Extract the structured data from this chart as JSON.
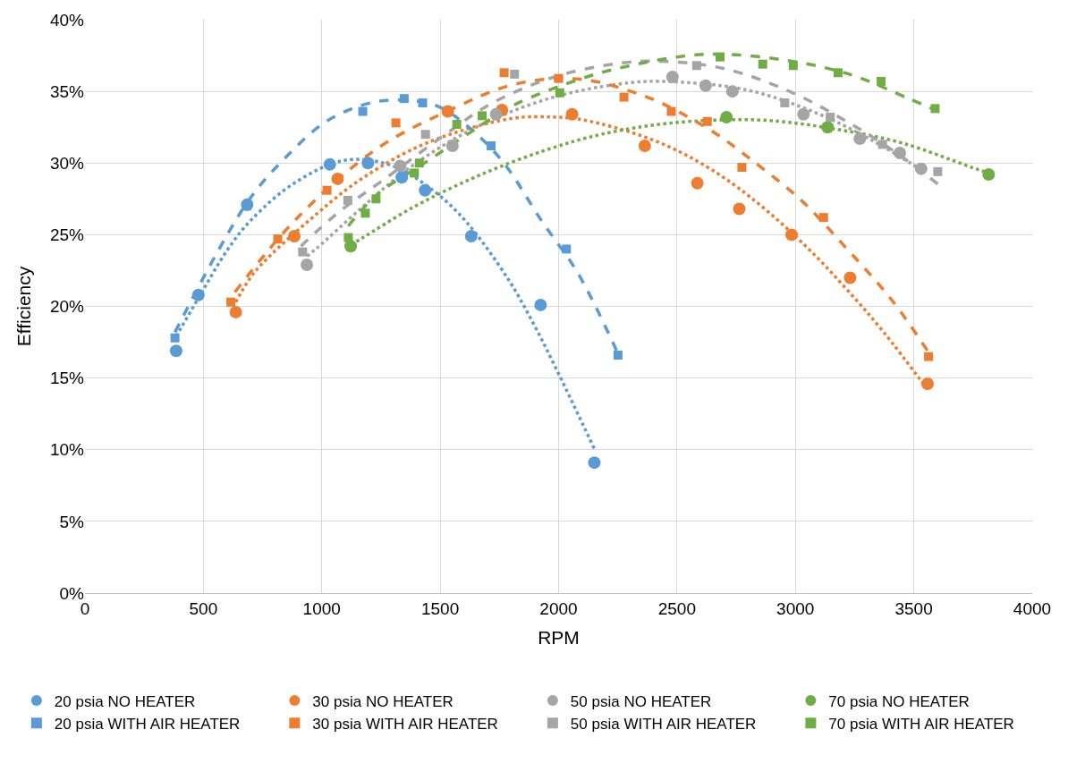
{
  "chart_data": {
    "type": "scatter",
    "xlabel": "RPM",
    "ylabel": "Efficiency",
    "xlim": [
      0,
      4000
    ],
    "xticks": [
      0,
      500,
      1000,
      1500,
      2000,
      2500,
      3000,
      3500,
      4000
    ],
    "ylim": [
      0,
      40
    ],
    "yticks": [
      {
        "value": 0,
        "label": "0%"
      },
      {
        "value": 5,
        "label": "5%"
      },
      {
        "value": 10,
        "label": "10%"
      },
      {
        "value": 15,
        "label": "15%"
      },
      {
        "value": 20,
        "label": "20%"
      },
      {
        "value": 25,
        "label": "25%"
      },
      {
        "value": 30,
        "label": "30%"
      },
      {
        "value": 35,
        "label": "35%"
      },
      {
        "value": 40,
        "label": "40%"
      }
    ],
    "grid": true,
    "legend": "bottom",
    "series": [
      {
        "name": "20 psia NO HEATER",
        "marker": "circle",
        "color": "#5b9bd5",
        "x": [
          385,
          479,
          685,
          1034,
          1195,
          1338,
          1436,
          1631,
          1924,
          2151
        ],
        "values": [
          16.9,
          20.8,
          27.1,
          29.9,
          30.0,
          29.0,
          28.1,
          24.9,
          20.1,
          9.1
        ]
      },
      {
        "name": "30 psia NO HEATER",
        "marker": "circle",
        "color": "#ed7d31",
        "x": [
          637,
          884,
          1067,
          1532,
          1761,
          2057,
          2364,
          2586,
          2763,
          2984,
          3231,
          3558
        ],
        "values": [
          19.6,
          24.9,
          28.9,
          33.6,
          33.7,
          33.4,
          31.2,
          28.6,
          26.8,
          25.0,
          22.0,
          14.6
        ]
      },
      {
        "name": "50 psia NO HEATER",
        "marker": "circle",
        "color": "#a5a5a5",
        "x": [
          937,
          1331,
          1552,
          1736,
          2481,
          2621,
          2734,
          3034,
          3272,
          3441,
          3531
        ],
        "values": [
          22.9,
          29.8,
          31.2,
          33.4,
          36.0,
          35.4,
          35.0,
          33.4,
          31.7,
          30.7,
          29.6
        ]
      },
      {
        "name": "70 psia NO HEATER",
        "marker": "circle",
        "color": "#70ad47",
        "x": [
          1122,
          2709,
          3136,
          3816
        ],
        "values": [
          24.2,
          33.2,
          32.5,
          29.2
        ]
      },
      {
        "name": "20 psia WITH AIR HEATER",
        "marker": "square",
        "color": "#5b9bd5",
        "x": [
          380,
          682,
          1173,
          1348,
          1426,
          1715,
          2033,
          2251
        ],
        "values": [
          17.8,
          27.0,
          33.6,
          34.5,
          34.2,
          31.2,
          24.0,
          16.6
        ]
      },
      {
        "name": "30 psia WITH AIR HEATER",
        "marker": "square",
        "color": "#ed7d31",
        "x": [
          616,
          814,
          1022,
          1313,
          1770,
          2000,
          2276,
          2476,
          2628,
          2774,
          3119,
          3562
        ],
        "values": [
          20.3,
          24.7,
          28.1,
          32.8,
          36.3,
          35.9,
          34.6,
          33.6,
          32.9,
          29.7,
          26.2,
          16.5
        ]
      },
      {
        "name": "50 psia WITH AIR HEATER",
        "marker": "square",
        "color": "#a5a5a5",
        "x": [
          919,
          1110,
          1438,
          1814,
          2583,
          2955,
          3147,
          3368,
          3601
        ],
        "values": [
          23.8,
          27.4,
          32.0,
          36.2,
          36.8,
          34.2,
          33.2,
          31.3,
          29.4
        ]
      },
      {
        "name": "70 psia WITH AIR HEATER",
        "marker": "square",
        "color": "#70ad47",
        "x": [
          1112,
          1184,
          1229,
          1391,
          1412,
          1570,
          1677,
          2005,
          2682,
          2862,
          2991,
          3180,
          3362,
          3590
        ],
        "values": [
          24.8,
          26.5,
          27.5,
          29.3,
          30.0,
          32.7,
          33.3,
          34.9,
          37.4,
          36.9,
          36.8,
          36.3,
          35.7,
          33.8
        ]
      },
      {
        "type": "line",
        "line_style": "dotted",
        "marker": "none",
        "color": "#5b9bd5",
        "x": [
          385,
          480,
          600,
          700,
          884,
          1100,
          1300,
          1484,
          1610,
          1787,
          1900,
          2000,
          2150
        ],
        "values": [
          17.9,
          20.6,
          23.9,
          26.0,
          28.6,
          30.2,
          29.8,
          27.9,
          25.9,
          21.9,
          18.6,
          15.3,
          10.1
        ]
      },
      {
        "type": "line",
        "line_style": "dotted",
        "marker": "none",
        "color": "#ed7d31",
        "x": [
          637,
          717,
          982,
          1177,
          1443,
          1799,
          1987,
          2107,
          2400,
          2620,
          2819,
          3050,
          3216,
          3373,
          3558
        ],
        "values": [
          20.3,
          22.4,
          26.5,
          29.0,
          31.4,
          33.1,
          33.2,
          33.0,
          31.6,
          29.8,
          27.5,
          24.1,
          21.2,
          18.2,
          14.2
        ]
      },
      {
        "type": "line",
        "line_style": "dotted",
        "marker": "none",
        "color": "#a5a5a5",
        "x": [
          937,
          982,
          1163,
          1373,
          1652,
          1959,
          2250,
          2431,
          2794,
          3087,
          3311,
          3534
        ],
        "values": [
          23.5,
          24.1,
          26.8,
          29.7,
          32.5,
          34.5,
          35.5,
          35.7,
          35.1,
          33.5,
          31.7,
          29.5
        ]
      },
      {
        "type": "line",
        "line_style": "dotted",
        "marker": "none",
        "color": "#70ad47",
        "x": [
          1122,
          1174,
          1384,
          1659,
          1945,
          2180,
          2480,
          2850,
          3157,
          3450,
          3744,
          3816
        ],
        "values": [
          24.3,
          24.8,
          26.9,
          29.1,
          30.9,
          32.0,
          32.8,
          33.0,
          32.4,
          31.4,
          29.7,
          29.3
        ]
      },
      {
        "type": "line",
        "line_style": "dashed",
        "marker": "none",
        "color": "#5b9bd5",
        "x": [
          380,
          563,
          700,
          842,
          1010,
          1163,
          1303,
          1484,
          1620,
          1764,
          1931,
          2082,
          2251
        ],
        "values": [
          18.2,
          23.9,
          27.6,
          30.3,
          32.8,
          34.0,
          34.4,
          34.0,
          32.5,
          30.1,
          25.9,
          22.3,
          16.7
        ]
      },
      {
        "type": "line",
        "line_style": "dashed",
        "marker": "none",
        "color": "#ed7d31",
        "x": [
          633,
          898,
          1233,
          1554,
          1792,
          2000,
          2152,
          2305,
          2445,
          2669,
          2808,
          3018,
          3213,
          3409,
          3562
        ],
        "values": [
          21.0,
          26.2,
          31.0,
          33.8,
          35.4,
          35.9,
          35.7,
          35.0,
          34.1,
          32.0,
          30.3,
          27.5,
          24.1,
          20.4,
          16.8
        ]
      },
      {
        "type": "line",
        "line_style": "dashed",
        "marker": "none",
        "color": "#a5a5a5",
        "x": [
          912,
          1066,
          1275,
          1513,
          1722,
          2001,
          2278,
          2431,
          2696,
          2975,
          3227,
          3436,
          3604
        ],
        "values": [
          24.2,
          26.5,
          29.0,
          31.9,
          34.2,
          36.1,
          37.0,
          37.1,
          36.6,
          35.0,
          32.8,
          30.6,
          28.5
        ]
      },
      {
        "type": "line",
        "line_style": "dashed",
        "marker": "none",
        "color": "#70ad47",
        "x": [
          1112,
          1233,
          1443,
          1624,
          1819,
          2099,
          2250,
          2501,
          2669,
          2948,
          3227,
          3478,
          3590
        ],
        "values": [
          25.6,
          27.8,
          30.1,
          32.1,
          34.1,
          35.9,
          36.6,
          37.4,
          37.6,
          37.2,
          36.2,
          34.5,
          33.7
        ]
      }
    ]
  }
}
